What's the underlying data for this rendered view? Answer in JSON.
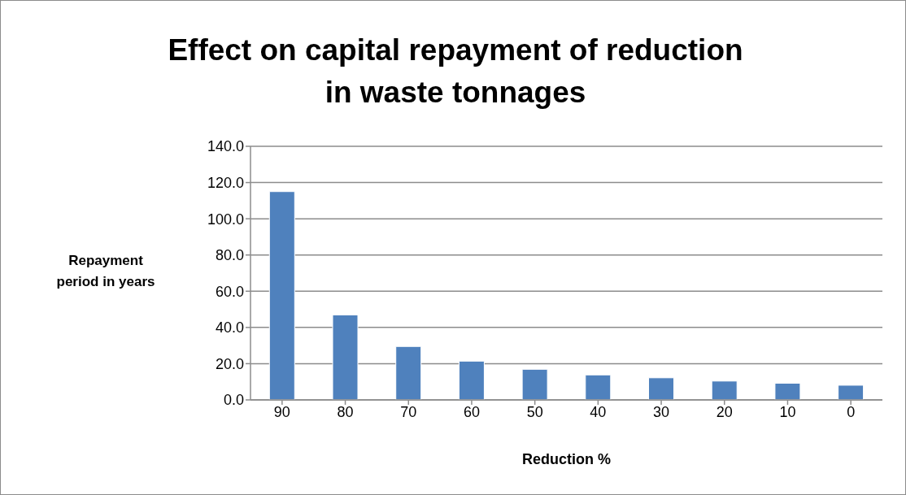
{
  "chart_data": {
    "type": "bar",
    "title": "Effect on capital repayment of reduction in waste tonnages",
    "xlabel": "Reduction %",
    "ylabel": "Repayment period in years",
    "categories": [
      "90",
      "80",
      "70",
      "60",
      "50",
      "40",
      "30",
      "20",
      "10",
      "0"
    ],
    "values": [
      115.0,
      46.9,
      29.5,
      21.4,
      16.9,
      13.8,
      12.2,
      10.4,
      9.2,
      8.1
    ],
    "color": "#4f81bd",
    "ylim": [
      0,
      140
    ],
    "yticks": [
      {
        "value": 0,
        "label": "0.0"
      },
      {
        "value": 20,
        "label": "20.0"
      },
      {
        "value": 40,
        "label": "40.0"
      },
      {
        "value": 60,
        "label": "60.0"
      },
      {
        "value": 80,
        "label": "80.0"
      },
      {
        "value": 100,
        "label": "100.0"
      },
      {
        "value": 120,
        "label": "120.0"
      },
      {
        "value": 140,
        "label": "140.0"
      }
    ],
    "grid": "y"
  }
}
